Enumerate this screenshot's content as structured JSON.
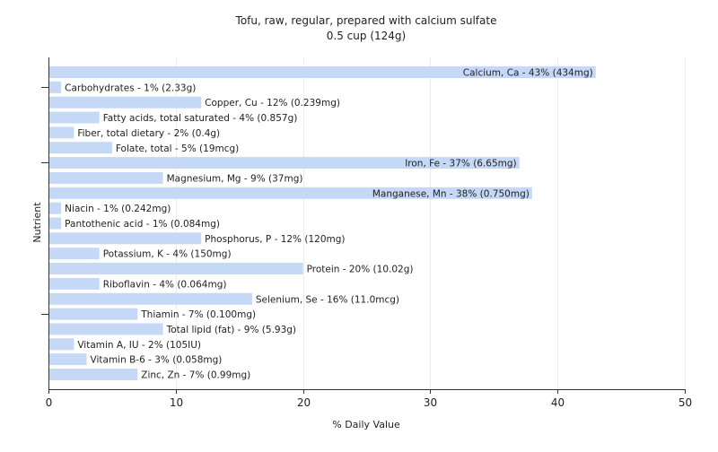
{
  "chart_data": {
    "type": "bar",
    "orientation": "horizontal",
    "title": "Tofu, raw, regular, prepared with calcium sulfate",
    "subtitle": "0.5 cup (124g)",
    "xlabel": "% Daily Value",
    "ylabel": "Nutrient",
    "xlim": [
      0,
      50
    ],
    "xticks": [
      0,
      10,
      20,
      30,
      40,
      50
    ],
    "grid": true,
    "bar_color": "#c5d9f7",
    "grid_color": "#ececec",
    "categories": [
      "Calcium, Ca",
      "Carbohydrates",
      "Copper, Cu",
      "Fatty acids, total saturated",
      "Fiber, total dietary",
      "Folate, total",
      "Iron, Fe",
      "Magnesium, Mg",
      "Manganese, Mn",
      "Niacin",
      "Pantothenic acid",
      "Phosphorus, P",
      "Potassium, K",
      "Protein",
      "Riboflavin",
      "Selenium, Se",
      "Thiamin",
      "Total lipid (fat)",
      "Vitamin A, IU",
      "Vitamin B-6",
      "Zinc, Zn"
    ],
    "values": [
      43,
      1,
      12,
      4,
      2,
      5,
      37,
      9,
      38,
      1,
      1,
      12,
      4,
      20,
      4,
      16,
      7,
      9,
      2,
      3,
      7
    ],
    "labels": [
      "Calcium, Ca - 43% (434mg)",
      "Carbohydrates - 1% (2.33g)",
      "Copper, Cu - 12% (0.239mg)",
      "Fatty acids, total saturated - 4% (0.857g)",
      "Fiber, total dietary - 2% (0.4g)",
      "Folate, total - 5% (19mcg)",
      "Iron, Fe - 37% (6.65mg)",
      "Magnesium, Mg - 9% (37mg)",
      "Manganese, Mn - 38% (0.750mg)",
      "Niacin - 1% (0.242mg)",
      "Pantothenic acid - 1% (0.084mg)",
      "Phosphorus, P - 12% (120mg)",
      "Potassium, K - 4% (150mg)",
      "Protein - 20% (10.02g)",
      "Riboflavin - 4% (0.064mg)",
      "Selenium, Se - 16% (11.0mcg)",
      "Thiamin - 7% (0.100mg)",
      "Total lipid (fat) - 9% (5.93g)",
      "Vitamin A, IU - 2% (105IU)",
      "Vitamin B-6 - 3% (0.058mg)",
      "Zinc, Zn - 7% (0.99mg)"
    ]
  }
}
